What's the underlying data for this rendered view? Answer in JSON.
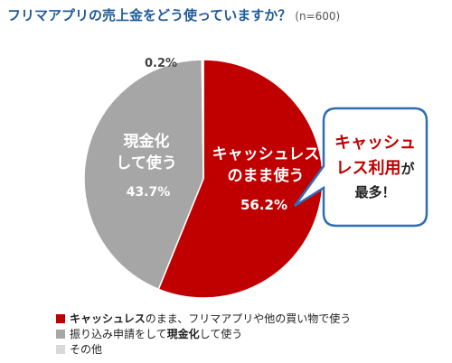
{
  "title": {
    "text": "フリマアプリの売上金をどう使っていますか？",
    "n": "(n=600)"
  },
  "chart_data": {
    "type": "pie",
    "title": "フリマアプリの売上金をどう使っていますか？",
    "n": "(n=600)",
    "slices": [
      {
        "label_lines": [
          "キャッシュレス",
          "のまま使う"
        ],
        "value": 56.2,
        "value_label": "56.2%",
        "color": "#c00000"
      },
      {
        "label_lines": [
          "現金化",
          "して使う"
        ],
        "value": 43.7,
        "value_label": "43.7%",
        "color": "#a6a6a6"
      },
      {
        "label_lines": [],
        "value": 0.2,
        "value_label": "0.2%",
        "color": "#d9d9d9"
      }
    ],
    "callout": {
      "line1": "キャッシュ",
      "line2a": "レス利用",
      "line2b": "が",
      "line3": "最多！"
    }
  },
  "legend": [
    {
      "bold": "キャッシュレス",
      "rest": "のまま、フリマアプリや他の買い物で使う",
      "bold2": "",
      "rest2": "",
      "color": "#c00000"
    },
    {
      "bold": "",
      "rest": "振り込み申請をして",
      "bold2": "現金化",
      "rest2": "して使う",
      "color": "#a6a6a6"
    },
    {
      "bold": "",
      "rest": "その他",
      "bold2": "",
      "rest2": "",
      "color": "#d9d9d9"
    }
  ]
}
